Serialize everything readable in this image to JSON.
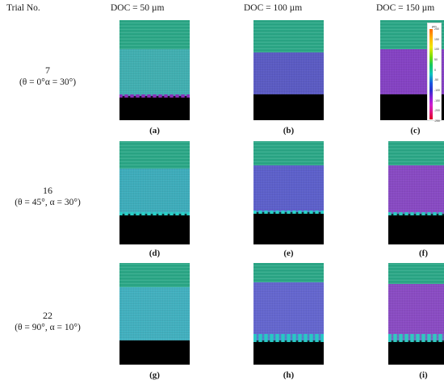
{
  "headers": {
    "trial": "Trial No.",
    "columns": [
      "DOC = 50 µm",
      "DOC = 100 µm",
      "DOC = 150 µm"
    ]
  },
  "rows": [
    {
      "trial": "7",
      "params": "(θ = 0°α = 30°)"
    },
    {
      "trial": "16",
      "params": "(θ = 45°, α = 30°)"
    },
    {
      "trial": "22",
      "params": "(θ = 90°, α = 10°)"
    }
  ],
  "captions": [
    "(a)",
    "(b)",
    "(c)",
    "(d)",
    "(e)",
    "(f)",
    "(g)",
    "(h)",
    "(i)"
  ],
  "panels": [
    {
      "machined_color": "#3fb3b5",
      "edge": "#8a2fb8"
    },
    {
      "machined_color": "#5a5ac8",
      "edge": "#000000"
    },
    {
      "machined_color": "#8640c8",
      "edge": "#000000"
    },
    {
      "machined_color": "#3cb0c0",
      "edge": "#2ad0c8"
    },
    {
      "machined_color": "#5c60d0",
      "edge": "#2ad0c8"
    },
    {
      "machined_color": "#8a48c8",
      "edge": "#30c8c0"
    },
    {
      "machined_color": "#40b4c4",
      "edge": "#000000"
    },
    {
      "machined_color": "#6466d4",
      "edge": "#28c8c4"
    },
    {
      "machined_color": "#8c4ac8",
      "edge": "#30c8c0"
    }
  ],
  "surface_color": "#2aa887",
  "colorbar": {
    "unit": "µm",
    "ticks": [
      "250",
      "150",
      "100",
      "50",
      "0",
      "-50",
      "-100",
      "-150",
      "-200",
      "-250"
    ]
  }
}
